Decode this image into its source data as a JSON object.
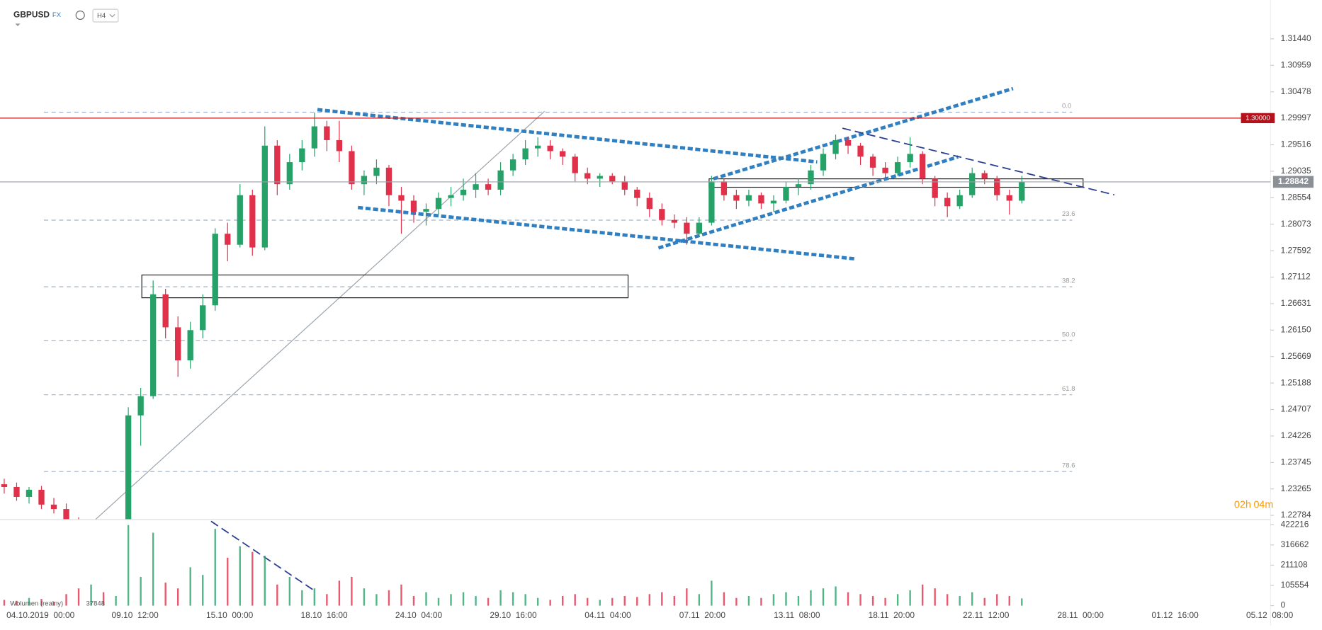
{
  "chart_data": {
    "type": "candlestick",
    "symbol": "GBPUSD",
    "market": "FX",
    "interval": "H4",
    "candles": [
      [
        1.2335,
        1.2345,
        1.2318,
        1.233
      ],
      [
        1.233,
        1.2338,
        1.2305,
        1.2312
      ],
      [
        1.2312,
        1.233,
        1.23,
        1.2325
      ],
      [
        1.2325,
        1.2332,
        1.229,
        1.2298
      ],
      [
        1.2298,
        1.231,
        1.2282,
        1.229
      ],
      [
        1.229,
        1.23,
        1.2255,
        1.2262
      ],
      [
        1.2262,
        1.2275,
        1.221,
        1.222
      ],
      [
        1.222,
        1.2245,
        1.2195,
        1.2235
      ],
      [
        1.2235,
        1.225,
        1.22,
        1.2215
      ],
      [
        1.2215,
        1.223,
        1.2205,
        1.2225
      ],
      [
        1.2225,
        1.2475,
        1.222,
        1.246
      ],
      [
        1.246,
        1.251,
        1.2405,
        1.2495
      ],
      [
        1.2495,
        1.2705,
        1.249,
        1.268
      ],
      [
        1.268,
        1.269,
        1.26,
        1.262
      ],
      [
        1.262,
        1.264,
        1.253,
        1.256
      ],
      [
        1.256,
        1.263,
        1.2545,
        1.2615
      ],
      [
        1.2615,
        1.268,
        1.26,
        1.266
      ],
      [
        1.266,
        1.28,
        1.265,
        1.279
      ],
      [
        1.279,
        1.281,
        1.274,
        1.277
      ],
      [
        1.277,
        1.288,
        1.2765,
        1.286
      ],
      [
        1.286,
        1.287,
        1.275,
        1.2765
      ],
      [
        1.2765,
        1.2985,
        1.276,
        1.295
      ],
      [
        1.295,
        1.296,
        1.286,
        1.288
      ],
      [
        1.288,
        1.2935,
        1.287,
        1.292
      ],
      [
        1.292,
        1.296,
        1.2905,
        1.2945
      ],
      [
        1.2945,
        1.301,
        1.293,
        1.2985
      ],
      [
        1.2985,
        1.2995,
        1.294,
        1.296
      ],
      [
        1.296,
        1.2995,
        1.292,
        1.294
      ],
      [
        1.294,
        1.295,
        1.287,
        1.288
      ],
      [
        1.288,
        1.2905,
        1.286,
        1.2895
      ],
      [
        1.2895,
        1.2925,
        1.288,
        1.291
      ],
      [
        1.291,
        1.2915,
        1.284,
        1.286
      ],
      [
        1.286,
        1.2875,
        1.279,
        1.285
      ],
      [
        1.285,
        1.286,
        1.281,
        1.283
      ],
      [
        1.283,
        1.2845,
        1.2805,
        1.2835
      ],
      [
        1.2835,
        1.2865,
        1.2825,
        1.2855
      ],
      [
        1.2855,
        1.2875,
        1.284,
        1.286
      ],
      [
        1.286,
        1.289,
        1.285,
        1.287
      ],
      [
        1.287,
        1.29,
        1.2855,
        1.288
      ],
      [
        1.288,
        1.289,
        1.286,
        1.287
      ],
      [
        1.287,
        1.292,
        1.286,
        1.2905
      ],
      [
        1.2905,
        1.2935,
        1.2895,
        1.2925
      ],
      [
        1.2925,
        1.296,
        1.2915,
        1.2945
      ],
      [
        1.2945,
        1.2965,
        1.293,
        1.295
      ],
      [
        1.295,
        1.296,
        1.2925,
        1.294
      ],
      [
        1.294,
        1.2945,
        1.2915,
        1.293
      ],
      [
        1.293,
        1.2935,
        1.2885,
        1.29
      ],
      [
        1.29,
        1.291,
        1.288,
        1.289
      ],
      [
        1.289,
        1.29,
        1.2875,
        1.2895
      ],
      [
        1.2895,
        1.29,
        1.288,
        1.2885
      ],
      [
        1.2885,
        1.2895,
        1.286,
        1.287
      ],
      [
        1.287,
        1.2875,
        1.284,
        1.2855
      ],
      [
        1.2855,
        1.2865,
        1.282,
        1.2835
      ],
      [
        1.2835,
        1.2845,
        1.2805,
        1.2815
      ],
      [
        1.2815,
        1.2825,
        1.28,
        1.281
      ],
      [
        1.281,
        1.282,
        1.277,
        1.279
      ],
      [
        1.279,
        1.282,
        1.2785,
        1.281
      ],
      [
        1.281,
        1.2895,
        1.2805,
        1.2885
      ],
      [
        1.2885,
        1.289,
        1.285,
        1.286
      ],
      [
        1.286,
        1.287,
        1.2835,
        1.285
      ],
      [
        1.285,
        1.287,
        1.284,
        1.286
      ],
      [
        1.286,
        1.2865,
        1.2835,
        1.2845
      ],
      [
        1.2845,
        1.286,
        1.283,
        1.285
      ],
      [
        1.285,
        1.2885,
        1.2845,
        1.2875
      ],
      [
        1.2875,
        1.289,
        1.286,
        1.288
      ],
      [
        1.288,
        1.2915,
        1.287,
        1.2905
      ],
      [
        1.2905,
        1.2945,
        1.2895,
        1.2935
      ],
      [
        1.2935,
        1.297,
        1.2925,
        1.296
      ],
      [
        1.296,
        1.2965,
        1.2935,
        1.295
      ],
      [
        1.295,
        1.2955,
        1.2915,
        1.293
      ],
      [
        1.293,
        1.2935,
        1.2895,
        1.291
      ],
      [
        1.291,
        1.292,
        1.289,
        1.29
      ],
      [
        1.29,
        1.293,
        1.2895,
        1.292
      ],
      [
        1.292,
        1.2965,
        1.291,
        1.2935
      ],
      [
        1.2935,
        1.294,
        1.288,
        1.289
      ],
      [
        1.289,
        1.2895,
        1.284,
        1.2855
      ],
      [
        1.2855,
        1.2865,
        1.282,
        1.284
      ],
      [
        1.284,
        1.287,
        1.2835,
        1.286
      ],
      [
        1.286,
        1.291,
        1.2855,
        1.29
      ],
      [
        1.29,
        1.2905,
        1.288,
        1.289
      ],
      [
        1.289,
        1.2895,
        1.285,
        1.286
      ],
      [
        1.286,
        1.287,
        1.2825,
        1.285
      ],
      [
        1.285,
        1.2895,
        1.2845,
        1.2884
      ]
    ],
    "volumes": [
      30000,
      25000,
      40000,
      35000,
      20000,
      60000,
      90000,
      110000,
      70000,
      50000,
      420000,
      150000,
      380000,
      120000,
      90000,
      200000,
      160000,
      400000,
      250000,
      310000,
      280000,
      260000,
      110000,
      150000,
      80000,
      90000,
      60000,
      130000,
      150000,
      90000,
      60000,
      80000,
      110000,
      50000,
      70000,
      40000,
      60000,
      70000,
      50000,
      40000,
      80000,
      70000,
      60000,
      40000,
      30000,
      50000,
      60000,
      40000,
      30000,
      40000,
      50000,
      45000,
      60000,
      70000,
      50000,
      90000,
      60000,
      130000,
      70000,
      40000,
      50000,
      40000,
      60000,
      70000,
      50000,
      80000,
      90000,
      100000,
      70000,
      60000,
      50000,
      40000,
      60000,
      80000,
      110000,
      90000,
      60000,
      50000,
      70000,
      40000,
      60000,
      50000,
      37848
    ],
    "ylim": [
      1.32145,
      1.22708
    ],
    "yticks": [
      {
        "value": 1.3144,
        "label": "1.31440"
      },
      {
        "value": 1.30959,
        "label": "1.30959"
      },
      {
        "value": 1.30478,
        "label": "1.30478"
      },
      {
        "value": 1.29997,
        "label": "1.29997"
      },
      {
        "value": 1.29516,
        "label": "1.29516"
      },
      {
        "value": 1.29035,
        "label": "1.29035"
      },
      {
        "value": 1.28554,
        "label": "1.28554"
      },
      {
        "value": 1.28073,
        "label": "1.28073"
      },
      {
        "value": 1.27592,
        "label": "1.27592"
      },
      {
        "value": 1.27112,
        "label": "1.27112"
      },
      {
        "value": 1.26631,
        "label": "1.26631"
      },
      {
        "value": 1.2615,
        "label": "1.26150"
      },
      {
        "value": 1.25669,
        "label": "1.25669"
      },
      {
        "value": 1.25188,
        "label": "1.25188"
      },
      {
        "value": 1.24707,
        "label": "1.24707"
      },
      {
        "value": 1.24226,
        "label": "1.24226"
      },
      {
        "value": 1.23745,
        "label": "1.23745"
      },
      {
        "value": 1.23265,
        "label": "1.23265"
      },
      {
        "value": 1.22784,
        "label": "1.22784"
      }
    ],
    "level": {
      "value": 1.3,
      "label": "1.30000"
    },
    "last_price": {
      "value": 1.28842,
      "label": "1.28842"
    },
    "fib_levels": [
      {
        "value": 0,
        "label": "0.0"
      },
      23.6,
      38.2,
      {
        "value": 50,
        "label": "50.0"
      },
      61.8,
      78.6
    ],
    "xticks": [
      "04.10.2019  00:00",
      "09.10  12:00",
      "15.10  00:00",
      "18.10  16:00",
      "24.10  04:00",
      "29.10  16:00",
      "04.11  04:00",
      "07.11  20:00",
      "13.11  08:00",
      "18.11  20:00",
      "22.11  12:00",
      "28.11  00:00",
      "01.12  16:00",
      "05.12  08:00"
    ],
    "volume_label": "Wolumen (realny)",
    "volume_last": 37848,
    "y2lim": [
      0,
      448600
    ],
    "y2ticks": [
      422216,
      316662,
      211108,
      105554,
      0
    ],
    "countdown": {
      "hours": "02h",
      "minutes": "04m"
    },
    "up_color": "#26a269",
    "down_color": "#e0304a"
  }
}
